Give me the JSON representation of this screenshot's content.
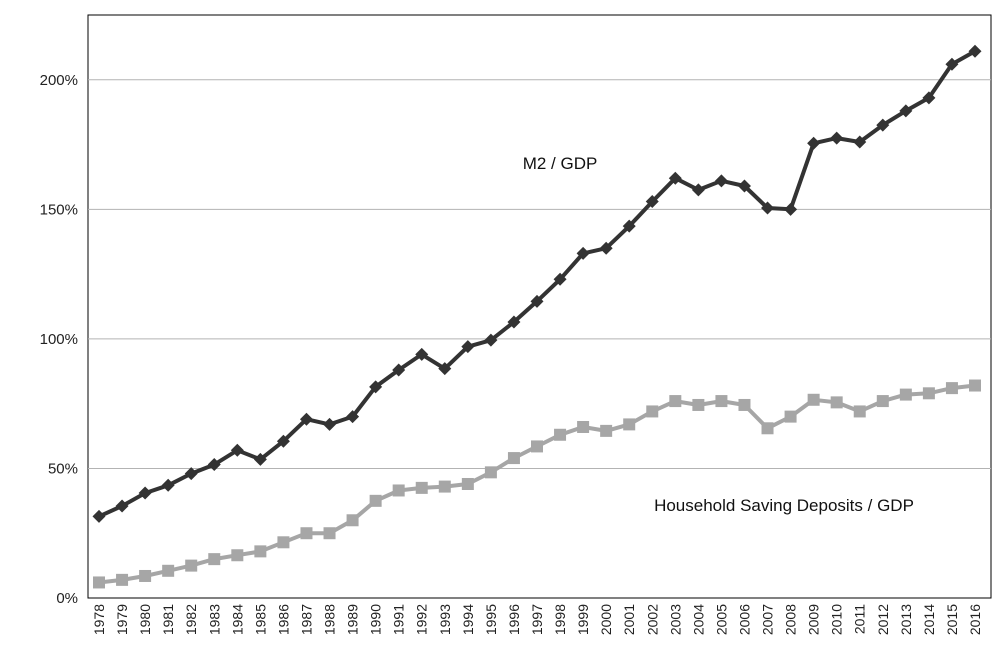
{
  "chart_data": {
    "type": "line",
    "title": "",
    "xlabel": "",
    "ylabel": "",
    "ylim": [
      0,
      225
    ],
    "y_ticks": [
      0,
      50,
      100,
      150,
      200
    ],
    "y_tick_labels": [
      "0%",
      "50%",
      "100%",
      "150%",
      "200%"
    ],
    "grid": "horizontal",
    "legend": "none",
    "x": [
      "1978",
      "1979",
      "1980",
      "1981",
      "1982",
      "1983",
      "1984",
      "1985",
      "1986",
      "1987",
      "1988",
      "1989",
      "1990",
      "1991",
      "1992",
      "1993",
      "1994",
      "1995",
      "1996",
      "1997",
      "1998",
      "1999",
      "2000",
      "2001",
      "2002",
      "2003",
      "2004",
      "2005",
      "2006",
      "2007",
      "2008",
      "2009",
      "2010",
      "2011",
      "2012",
      "2013",
      "2014",
      "2015",
      "2016"
    ],
    "series": [
      {
        "name": "M2 / GDP",
        "color": "#333333",
        "marker": "diamond",
        "values": [
          31.5,
          35.5,
          40.5,
          43.5,
          48,
          51.5,
          57,
          53.5,
          60.5,
          69,
          67,
          70,
          81.5,
          88,
          94,
          88.5,
          97,
          99.5,
          106.5,
          114.5,
          123,
          133,
          135,
          143.5,
          153,
          162,
          157.5,
          161,
          159,
          150.5,
          150,
          175.5,
          177.5,
          176,
          182.5,
          188,
          193,
          206,
          211
        ]
      },
      {
        "name": "Household Saving Deposits / GDP",
        "color": "#a6a6a6",
        "marker": "square",
        "values": [
          6,
          7,
          8.5,
          10.5,
          12.5,
          15,
          16.5,
          18,
          21.5,
          25,
          25,
          30,
          37.5,
          41.5,
          42.5,
          43,
          44,
          48.5,
          54,
          58.5,
          63,
          66,
          64.5,
          67,
          72,
          76,
          74.5,
          76,
          74.5,
          65.5,
          70,
          76.5,
          75.5,
          72,
          76,
          78.5,
          79,
          81,
          82
        ]
      }
    ],
    "annotations": [
      {
        "text": "M2 / GDP",
        "series": 0
      },
      {
        "text": "Household Saving Deposits / GDP",
        "series": 1
      }
    ]
  }
}
